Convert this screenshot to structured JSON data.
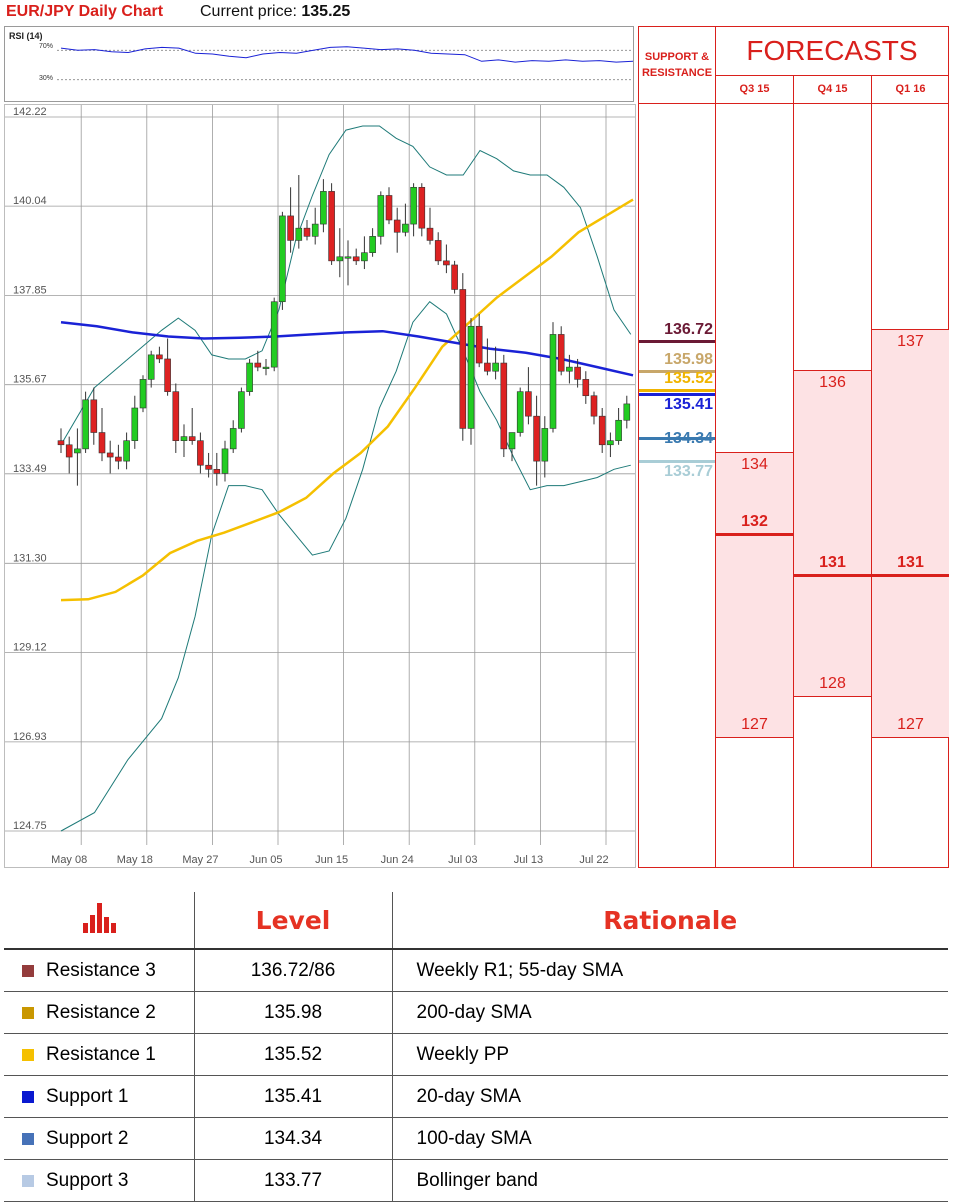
{
  "header": {
    "title": "EUR/JPY Daily Chart",
    "price_label": "Current price:",
    "price_value": "135.25"
  },
  "rsi": {
    "label": "RSI (14)",
    "upper_level": "70%",
    "lower_level": "30%",
    "upper": 70,
    "lower": 30,
    "values": [
      73,
      70,
      71,
      68,
      67,
      72,
      74,
      73,
      66,
      65,
      62,
      60,
      65,
      67,
      66,
      70,
      74,
      75,
      73,
      71,
      72,
      70,
      66,
      65,
      64,
      55,
      57,
      54,
      56,
      55,
      57,
      55,
      56,
      54,
      55
    ]
  },
  "chart_data": {
    "type": "candlestick",
    "title": "EUR/JPY Daily Chart",
    "ylim": [
      124.75,
      142.22
    ],
    "y_ticks": [
      "142.22",
      "140.04",
      "137.85",
      "135.67",
      "133.49",
      "131.30",
      "129.12",
      "126.93",
      "124.75"
    ],
    "x_ticks": [
      "May 08",
      "May 18",
      "May 27",
      "Jun 05",
      "Jun 15",
      "Jun 24",
      "Jul 03",
      "Jul 13",
      "Jul 22"
    ],
    "x_tick_index": [
      1,
      9,
      17,
      25,
      33,
      41,
      49,
      57,
      65
    ],
    "grid": true,
    "candles": [
      [
        134.3,
        134.6,
        134.0,
        134.2
      ],
      [
        134.2,
        134.4,
        133.5,
        133.9
      ],
      [
        134.0,
        134.6,
        133.2,
        134.1
      ],
      [
        134.1,
        135.5,
        134.0,
        135.3
      ],
      [
        135.3,
        135.6,
        134.2,
        134.5
      ],
      [
        134.5,
        135.1,
        133.8,
        134.0
      ],
      [
        134.0,
        134.3,
        133.5,
        133.9
      ],
      [
        133.9,
        134.2,
        133.6,
        133.8
      ],
      [
        133.8,
        134.5,
        133.6,
        134.3
      ],
      [
        134.3,
        135.4,
        134.1,
        135.1
      ],
      [
        135.1,
        135.9,
        135.0,
        135.8
      ],
      [
        135.8,
        136.5,
        135.6,
        136.4
      ],
      [
        136.4,
        136.6,
        136.2,
        136.3
      ],
      [
        136.3,
        136.8,
        135.4,
        135.5
      ],
      [
        135.5,
        135.7,
        134.0,
        134.3
      ],
      [
        134.3,
        134.7,
        133.9,
        134.4
      ],
      [
        134.4,
        135.1,
        134.2,
        134.3
      ],
      [
        134.3,
        134.5,
        133.5,
        133.7
      ],
      [
        133.7,
        134.0,
        133.4,
        133.6
      ],
      [
        133.6,
        134.0,
        133.2,
        133.5
      ],
      [
        133.5,
        134.3,
        133.3,
        134.1
      ],
      [
        134.1,
        134.8,
        134.0,
        134.6
      ],
      [
        134.6,
        135.6,
        134.5,
        135.5
      ],
      [
        135.5,
        136.3,
        135.4,
        136.2
      ],
      [
        136.2,
        136.5,
        136.0,
        136.1
      ],
      [
        136.1,
        136.3,
        135.9,
        136.1
      ],
      [
        136.1,
        137.8,
        136.0,
        137.7
      ],
      [
        137.7,
        139.9,
        137.5,
        139.8
      ],
      [
        139.8,
        140.5,
        138.9,
        139.2
      ],
      [
        139.2,
        140.8,
        139.0,
        139.5
      ],
      [
        139.5,
        139.7,
        139.2,
        139.3
      ],
      [
        139.3,
        140.0,
        139.1,
        139.6
      ],
      [
        139.6,
        140.7,
        139.4,
        140.4
      ],
      [
        140.4,
        140.6,
        138.6,
        138.7
      ],
      [
        138.7,
        139.5,
        138.3,
        138.8
      ],
      [
        138.8,
        139.2,
        138.1,
        138.8
      ],
      [
        138.8,
        139.0,
        138.6,
        138.7
      ],
      [
        138.7,
        139.3,
        138.5,
        138.9
      ],
      [
        138.9,
        139.5,
        138.8,
        139.3
      ],
      [
        139.3,
        140.4,
        139.1,
        140.3
      ],
      [
        140.3,
        140.5,
        139.6,
        139.7
      ],
      [
        139.7,
        140.0,
        138.9,
        139.4
      ],
      [
        139.4,
        140.1,
        139.3,
        139.6
      ],
      [
        139.6,
        140.6,
        139.3,
        140.5
      ],
      [
        140.5,
        140.6,
        139.3,
        139.5
      ],
      [
        139.5,
        140.0,
        139.1,
        139.2
      ],
      [
        139.2,
        139.4,
        138.6,
        138.7
      ],
      [
        138.7,
        139.1,
        138.4,
        138.6
      ],
      [
        138.6,
        138.7,
        137.9,
        138.0
      ],
      [
        138.0,
        138.4,
        134.3,
        134.6
      ],
      [
        134.6,
        137.3,
        134.2,
        137.1
      ],
      [
        137.1,
        137.4,
        136.1,
        136.2
      ],
      [
        136.2,
        136.8,
        135.9,
        136.0
      ],
      [
        136.0,
        136.6,
        135.8,
        136.2
      ],
      [
        136.2,
        136.4,
        133.9,
        134.1
      ],
      [
        134.1,
        134.5,
        133.8,
        134.5
      ],
      [
        134.5,
        135.6,
        134.4,
        135.5
      ],
      [
        135.5,
        136.1,
        134.7,
        134.9
      ],
      [
        134.9,
        135.4,
        133.2,
        133.8
      ],
      [
        133.8,
        134.9,
        133.4,
        134.6
      ],
      [
        134.6,
        137.2,
        134.5,
        136.9
      ],
      [
        136.9,
        137.1,
        135.9,
        136.0
      ],
      [
        136.0,
        136.4,
        135.7,
        136.1
      ],
      [
        136.1,
        136.3,
        135.6,
        135.8
      ],
      [
        135.8,
        136.0,
        135.2,
        135.4
      ],
      [
        135.4,
        135.5,
        134.7,
        134.9
      ],
      [
        134.9,
        135.1,
        134.0,
        134.2
      ],
      [
        134.2,
        134.5,
        133.9,
        134.3
      ],
      [
        134.3,
        135.1,
        134.2,
        134.8
      ],
      [
        134.8,
        135.4,
        134.6,
        135.2
      ]
    ],
    "sma200": [
      [
        0,
        130.4
      ],
      [
        5,
        130.42
      ],
      [
        10,
        130.6
      ],
      [
        15,
        131.0
      ],
      [
        20,
        131.55
      ],
      [
        25,
        131.85
      ],
      [
        30,
        132.05
      ],
      [
        35,
        132.3
      ],
      [
        40,
        132.55
      ],
      [
        45,
        132.9
      ],
      [
        50,
        133.5
      ],
      [
        55,
        134.0
      ],
      [
        60,
        134.65
      ],
      [
        65,
        135.6
      ],
      [
        70,
        136.6
      ],
      [
        75,
        137.2
      ],
      [
        80,
        137.8
      ],
      [
        85,
        138.3
      ],
      [
        90,
        138.8
      ],
      [
        95,
        139.4
      ],
      [
        100,
        139.8
      ],
      [
        105,
        140.2
      ]
    ],
    "sma55": [
      [
        0,
        137.2
      ],
      [
        10,
        137.1
      ],
      [
        20,
        136.95
      ],
      [
        30,
        136.85
      ],
      [
        40,
        136.8
      ],
      [
        50,
        136.82
      ],
      [
        60,
        136.85
      ],
      [
        70,
        136.9
      ],
      [
        80,
        136.95
      ],
      [
        90,
        136.98
      ],
      [
        100,
        136.85
      ],
      [
        110,
        136.7
      ],
      [
        120,
        136.55
      ],
      [
        130,
        136.45
      ],
      [
        140,
        136.3
      ],
      [
        150,
        136.1
      ],
      [
        160,
        135.9
      ]
    ],
    "bollinger_upper": [
      [
        0,
        134.2
      ],
      [
        4,
        135.6
      ],
      [
        8,
        136.3
      ],
      [
        12,
        137.0
      ],
      [
        14,
        137.3
      ],
      [
        16,
        137.0
      ],
      [
        18,
        136.4
      ],
      [
        20,
        136.3
      ],
      [
        22,
        136.3
      ],
      [
        24,
        136.5
      ],
      [
        26,
        137.5
      ],
      [
        28,
        139.2
      ],
      [
        30,
        140.3
      ],
      [
        32,
        141.3
      ],
      [
        34,
        141.9
      ],
      [
        36,
        142.0
      ],
      [
        38,
        142.0
      ],
      [
        40,
        141.7
      ],
      [
        42,
        141.5
      ],
      [
        44,
        141.0
      ],
      [
        46,
        140.8
      ],
      [
        48,
        140.8
      ],
      [
        50,
        141.4
      ],
      [
        52,
        141.2
      ],
      [
        54,
        140.9
      ],
      [
        56,
        140.8
      ],
      [
        58,
        140.8
      ],
      [
        60,
        140.5
      ],
      [
        62,
        140.0
      ],
      [
        64,
        138.8
      ],
      [
        66,
        137.5
      ],
      [
        68,
        136.9
      ]
    ],
    "bollinger_lower": [
      [
        0,
        124.75
      ],
      [
        4,
        125.2
      ],
      [
        8,
        126.5
      ],
      [
        12,
        127.5
      ],
      [
        14,
        128.5
      ],
      [
        16,
        130.0
      ],
      [
        18,
        132.0
      ],
      [
        20,
        133.2
      ],
      [
        22,
        133.2
      ],
      [
        24,
        133.1
      ],
      [
        26,
        132.5
      ],
      [
        28,
        132.0
      ],
      [
        30,
        131.5
      ],
      [
        32,
        131.6
      ],
      [
        34,
        132.4
      ],
      [
        36,
        133.6
      ],
      [
        38,
        135.1
      ],
      [
        40,
        136.0
      ],
      [
        42,
        137.2
      ],
      [
        44,
        137.7
      ],
      [
        46,
        137.4
      ],
      [
        48,
        136.5
      ],
      [
        50,
        135.5
      ],
      [
        52,
        134.8
      ],
      [
        54,
        133.9
      ],
      [
        56,
        133.1
      ],
      [
        58,
        133.2
      ],
      [
        60,
        133.2
      ],
      [
        62,
        133.3
      ],
      [
        64,
        133.4
      ],
      [
        66,
        133.6
      ],
      [
        68,
        133.7
      ]
    ]
  },
  "support_resistance": {
    "title": "SUPPORT & RESISTANCE",
    "levels": [
      {
        "text": "136.72",
        "value": 136.72,
        "color": "#6b1a35"
      },
      {
        "text": "135.98",
        "value": 135.98,
        "color": "#c8a76a"
      },
      {
        "text": "135.52",
        "value": 135.52,
        "color": "#f0b400"
      },
      {
        "text": "135.41",
        "value": 135.41,
        "color": "#1a22d6"
      },
      {
        "text": "134.34",
        "value": 134.34,
        "color": "#3a7ab0"
      },
      {
        "text": "133.77",
        "value": 133.77,
        "color": "#a9cdd6"
      }
    ]
  },
  "forecasts": {
    "title": "FORECASTS",
    "columns": [
      {
        "label": "Q3 15",
        "high": 134,
        "mid": 132,
        "low": 127
      },
      {
        "label": "Q4 15",
        "high": 136,
        "mid": 131,
        "low": 128
      },
      {
        "label": "Q1 16",
        "high": 137,
        "mid": 131,
        "low": 127
      }
    ]
  },
  "table": {
    "headers": {
      "level": "Level",
      "rationale": "Rationale"
    },
    "rows": [
      {
        "name": "Resistance 3",
        "level": "136.72/86",
        "rationale": "Weekly R1; 55-day SMA",
        "color": "#943c3c"
      },
      {
        "name": "Resistance 2",
        "level": "135.98",
        "rationale": "200-day SMA",
        "color": "#c99700"
      },
      {
        "name": "Resistance 1",
        "level": "135.52",
        "rationale": "Weekly PP",
        "color": "#f5c000"
      },
      {
        "name": "Support 1",
        "level": "135.41",
        "rationale": "20-day SMA",
        "color": "#0a19d0"
      },
      {
        "name": "Support 2",
        "level": "134.34",
        "rationale": "100-day SMA",
        "color": "#4672b8"
      },
      {
        "name": "Support 3",
        "level": "133.77",
        "rationale": "Bollinger band",
        "color": "#b7cae4"
      }
    ]
  }
}
